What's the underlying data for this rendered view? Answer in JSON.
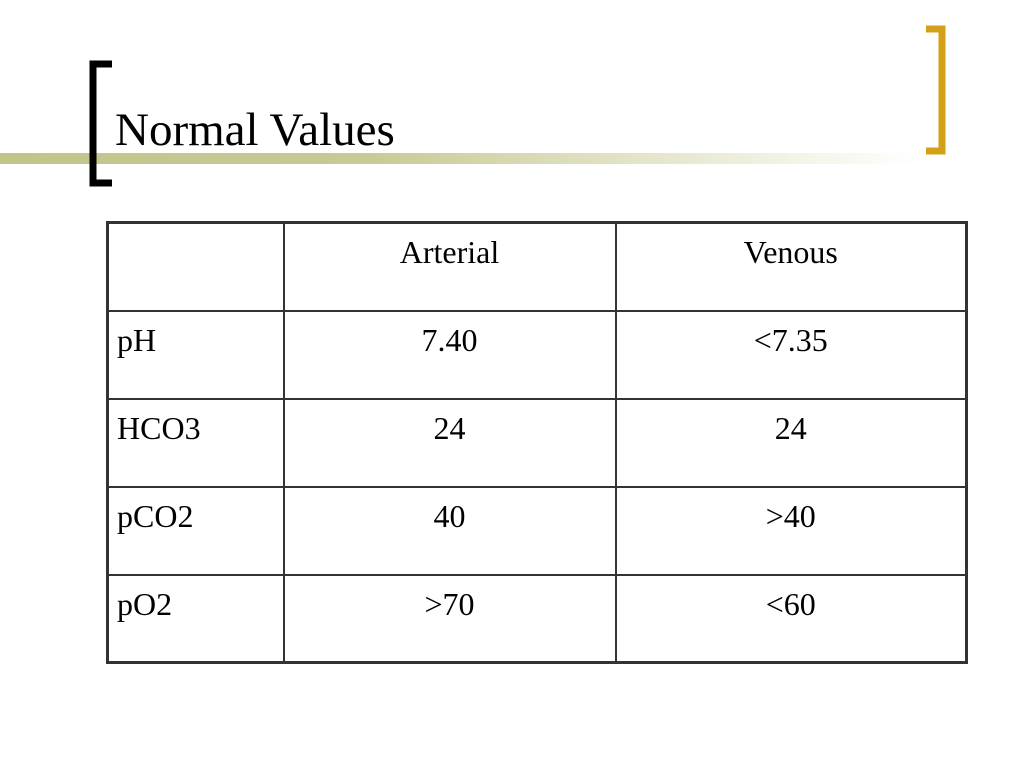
{
  "header": {
    "title": "Normal Values"
  },
  "table": {
    "columns": [
      "Arterial",
      "Venous"
    ],
    "rows": [
      [
        "pH",
        "7.40",
        "<7.35"
      ],
      [
        "HCO3",
        "24",
        "24"
      ],
      [
        "pCO2",
        "40",
        ">40"
      ],
      [
        "pO2",
        ">70",
        "<60"
      ]
    ]
  }
}
